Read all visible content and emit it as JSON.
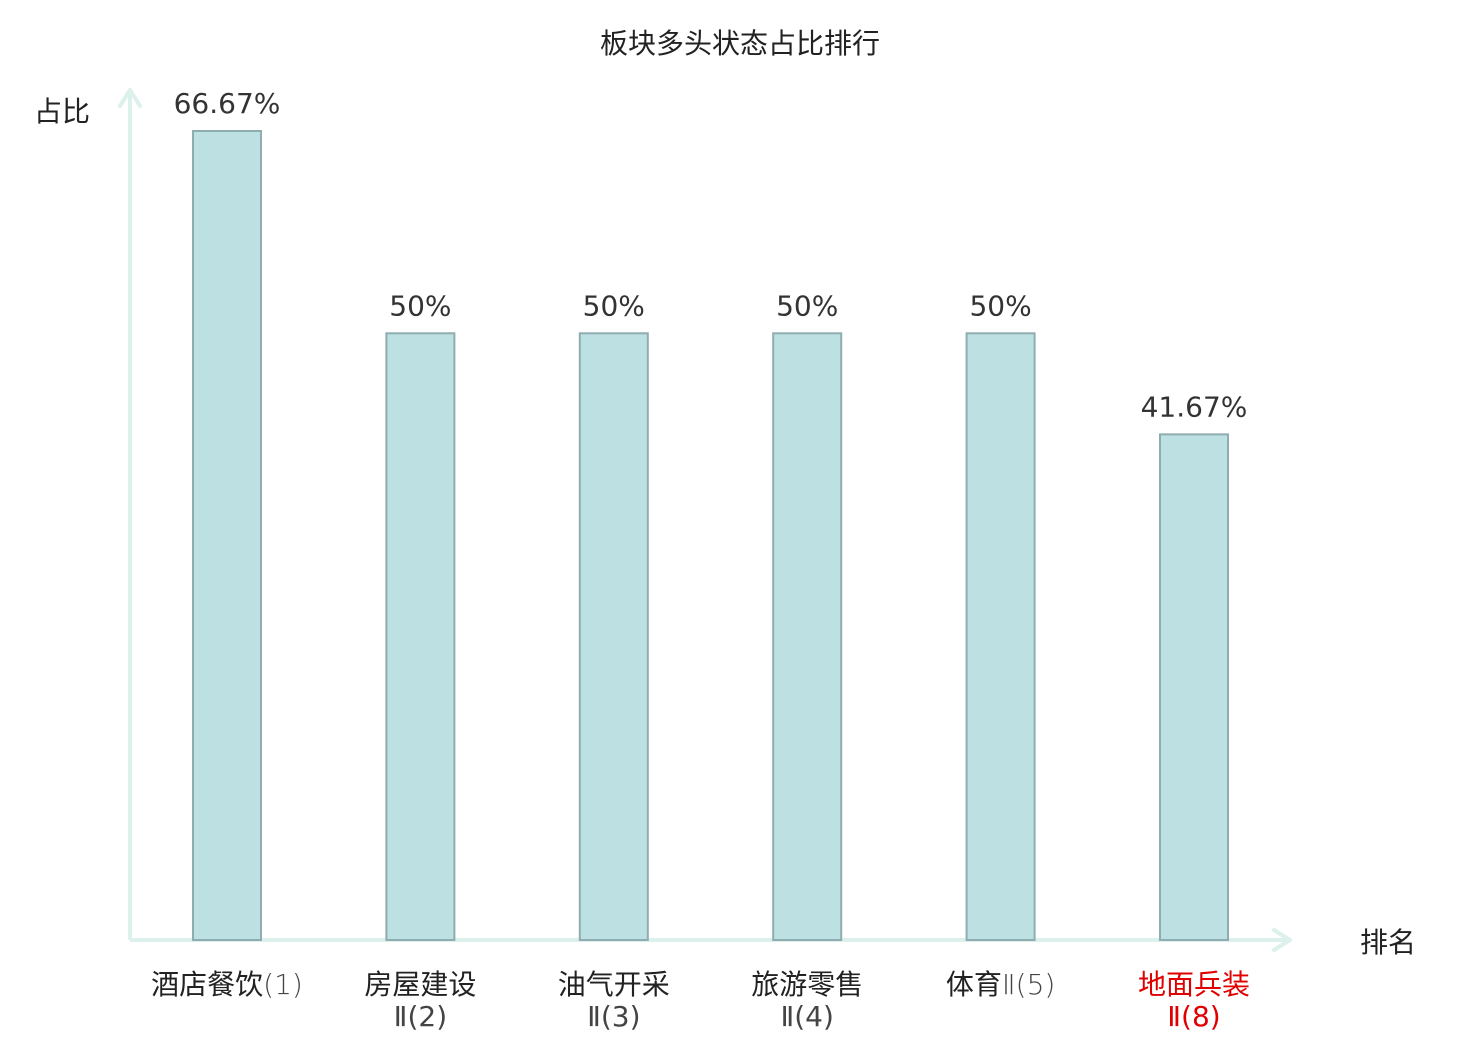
{
  "chart_data": {
    "type": "bar",
    "title": "板块多头状态占比排行",
    "xlabel": "排名",
    "ylabel": "占比",
    "ylim": [
      0,
      70
    ],
    "grid": false,
    "categories": [
      {
        "name": "酒店餐饮",
        "rank": "(1)",
        "highlight": false
      },
      {
        "name": "房屋建设",
        "rank": "Ⅱ(2)",
        "highlight": false
      },
      {
        "name": "油气开采",
        "rank": "Ⅱ(3)",
        "highlight": false
      },
      {
        "name": "旅游零售",
        "rank": "Ⅱ(4)",
        "highlight": false
      },
      {
        "name": "体育",
        "rank": "Ⅱ(5)",
        "highlight": false
      },
      {
        "name": "地面兵装",
        "rank": "Ⅱ(8)",
        "highlight": true
      }
    ],
    "values": [
      66.67,
      50,
      50,
      50,
      50,
      41.67
    ],
    "value_labels": [
      "66.67%",
      "50%",
      "50%",
      "50%",
      "50%",
      "41.67%"
    ],
    "colors": {
      "bar_fill": "#bde1e3",
      "bar_stroke": "#8fadb0",
      "axis": "#dcf0ec",
      "text": "#222222",
      "value_text": "#333333",
      "highlight": "#e00000"
    }
  }
}
